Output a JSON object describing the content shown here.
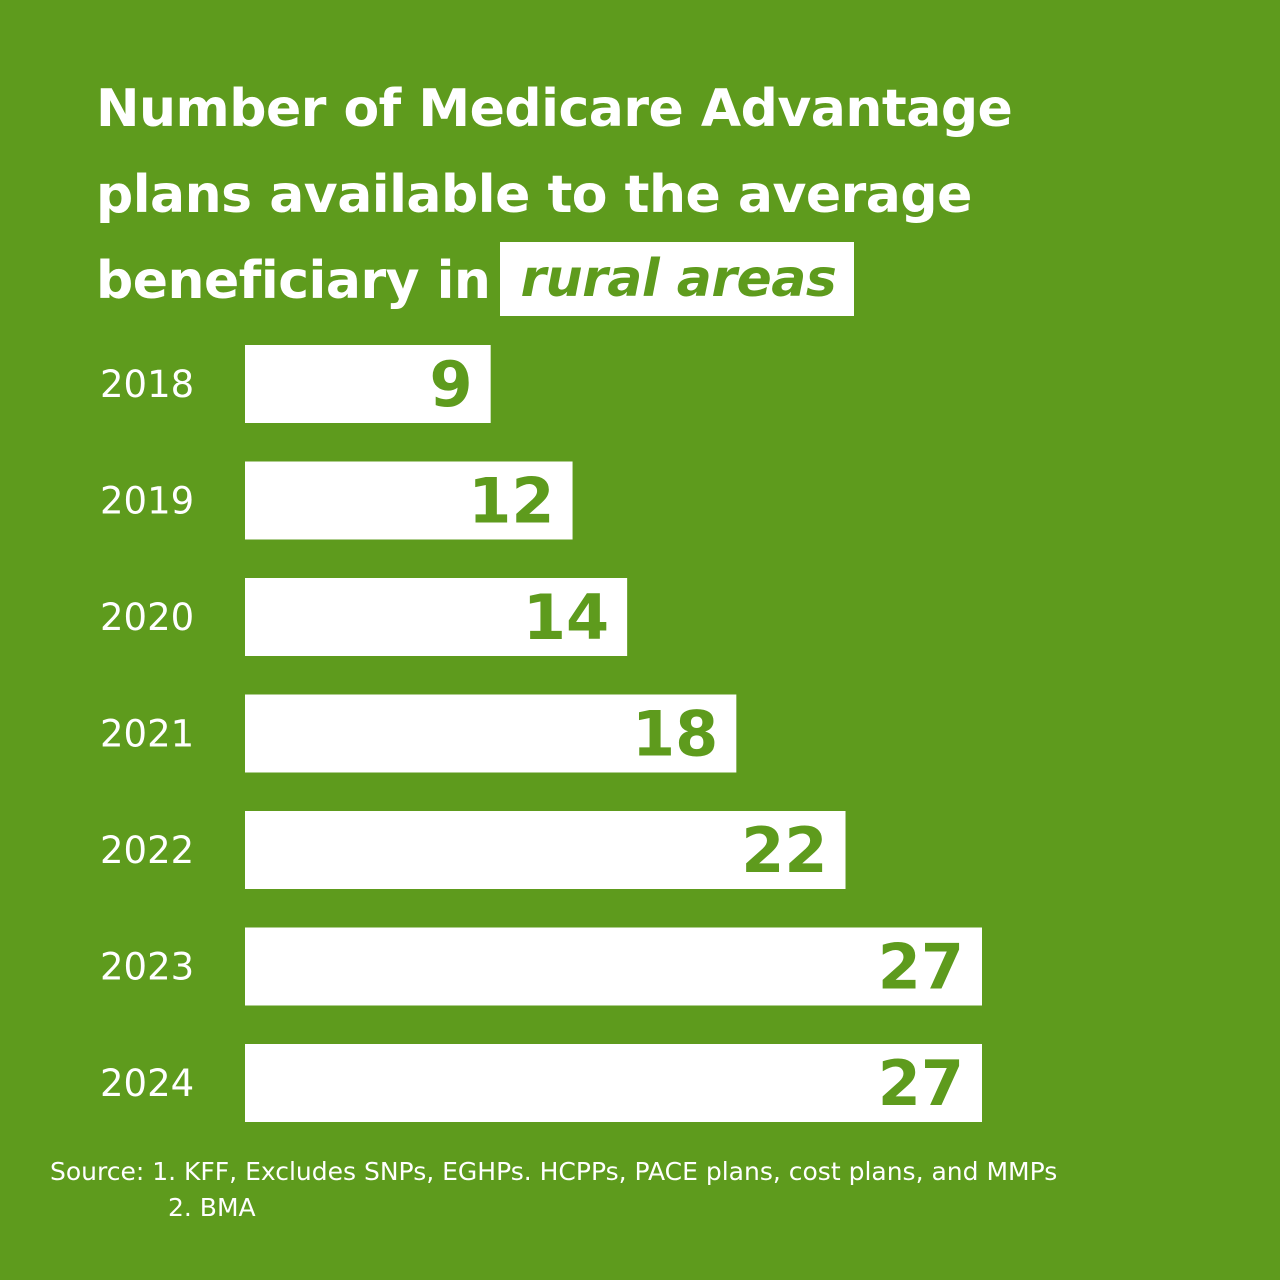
{
  "colors": {
    "background": "#5e9b1d",
    "bar": "#ffffff",
    "value_text": "#5e9b1d",
    "label_text": "#ffffff"
  },
  "title": {
    "line1": "Number of Medicare Advantage",
    "line2": "plans available to the average",
    "line3_prefix": "beneficiary in",
    "highlight": "rural areas"
  },
  "chart_data": {
    "type": "bar",
    "orientation": "horizontal",
    "title": "Number of Medicare Advantage plans available to the average beneficiary in rural areas",
    "categories": [
      "2018",
      "2019",
      "2020",
      "2021",
      "2022",
      "2023",
      "2024"
    ],
    "values": [
      9,
      12,
      14,
      18,
      22,
      27,
      27
    ],
    "xlabel": "",
    "ylabel": "",
    "xlim": [
      0,
      27
    ],
    "grid": false,
    "legend": "none",
    "data_labels": true
  },
  "source": {
    "line1": "Source: 1. KFF, Excludes SNPs, EGHPs. HCPPs, PACE plans, cost plans, and MMPs",
    "line2": "2. BMA"
  }
}
